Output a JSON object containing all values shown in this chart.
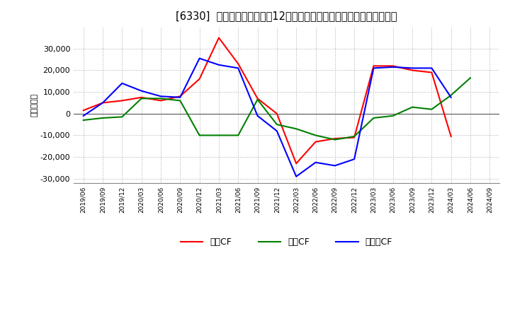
{
  "title": "[6330]  キャッシュフローの12か月移動合計の対前年同期増減額の推移",
  "ylabel": "（百万円）",
  "background_color": "#ffffff",
  "plot_bg_color": "#ffffff",
  "grid_color": "#aaaaaa",
  "dates": [
    "2019/06",
    "2019/09",
    "2019/12",
    "2020/03",
    "2020/06",
    "2020/09",
    "2020/12",
    "2021/03",
    "2021/06",
    "2021/09",
    "2021/12",
    "2022/03",
    "2022/06",
    "2022/09",
    "2022/12",
    "2023/03",
    "2023/06",
    "2023/09",
    "2023/12",
    "2024/03",
    "2024/06",
    "2024/09"
  ],
  "operating_cf": [
    1500,
    5000,
    6000,
    7500,
    6000,
    8000,
    16000,
    35000,
    23000,
    7000,
    0,
    -23000,
    -13000,
    -11500,
    -11000,
    22000,
    22000,
    20000,
    19000,
    -10500,
    null,
    null
  ],
  "investing_cf": [
    -3000,
    -2000,
    -1500,
    7000,
    7000,
    6000,
    -10000,
    -10000,
    -10000,
    6500,
    -5000,
    -7000,
    -10000,
    -12000,
    -10500,
    -2000,
    -1000,
    3000,
    2000,
    8500,
    16500,
    null
  ],
  "free_cf": [
    -1000,
    5000,
    14000,
    10500,
    8000,
    7500,
    25500,
    22500,
    21000,
    -1000,
    -8000,
    -29000,
    -22500,
    -24000,
    -21000,
    21000,
    21500,
    21000,
    21000,
    7500,
    null,
    null
  ],
  "operating_color": "#ff0000",
  "investing_color": "#008000",
  "free_color": "#0000ff",
  "ylim": [
    -32000,
    40000
  ],
  "yticks": [
    -30000,
    -20000,
    -10000,
    0,
    10000,
    20000,
    30000
  ],
  "legend_labels": [
    "営業CF",
    "投資CF",
    "フリーCF"
  ]
}
